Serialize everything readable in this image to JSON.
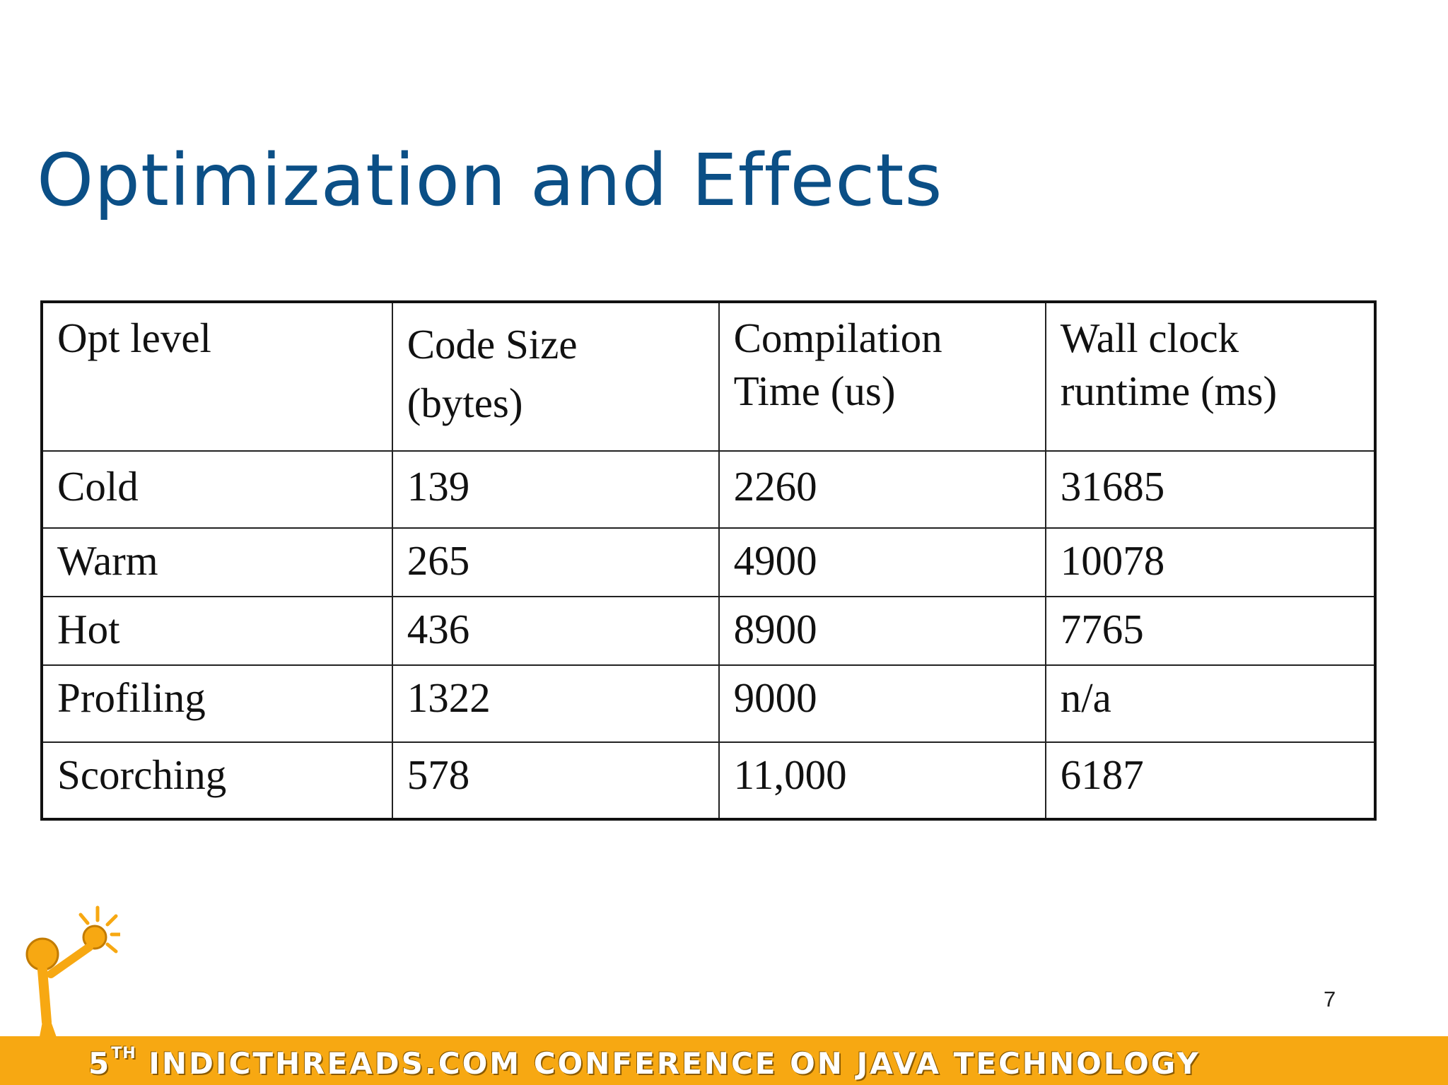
{
  "slide": {
    "title": "Optimization and Effects",
    "page_number": "7"
  },
  "table": {
    "headers": [
      [
        "Opt level"
      ],
      [
        "Code Size",
        "(bytes)"
      ],
      [
        "Compilation",
        "Time (us)"
      ],
      [
        "Wall clock",
        "runtime (ms)"
      ]
    ],
    "rows": [
      [
        "Cold",
        "139",
        "2260",
        "31685"
      ],
      [
        "Warm",
        "265",
        "4900",
        "10078"
      ],
      [
        "Hot",
        "436",
        "8900",
        "7765"
      ],
      [
        "Profiling",
        "1322",
        "9000",
        "n/a"
      ],
      [
        "Scorching",
        "578",
        "11,000",
        "6187"
      ]
    ]
  },
  "footer": {
    "ordinal_number": "5",
    "ordinal_suffix": "TH",
    "text": "INDICTHREADS.COM CONFERENCE ON JAVA TECHNOLOGY"
  },
  "colors": {
    "title": "#0b4f86",
    "footer_band": "#f7a812",
    "logo_figure": "#f7a812"
  },
  "icons": {
    "logo": "lightbulb-figure-icon"
  }
}
